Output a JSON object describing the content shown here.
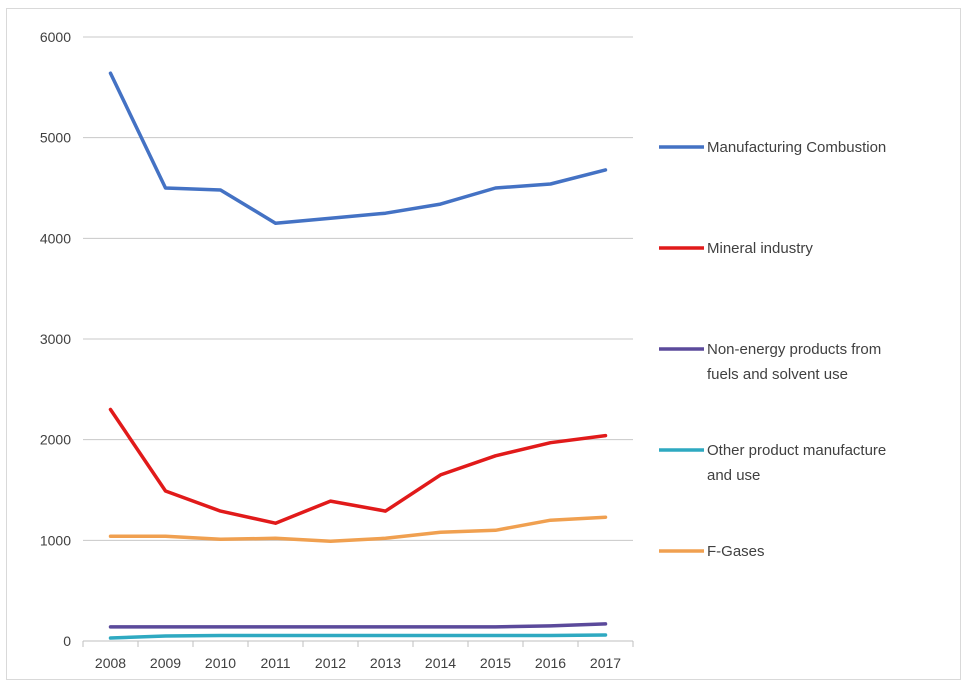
{
  "chart_data": {
    "type": "line",
    "title": "",
    "xlabel": "",
    "ylabel": "",
    "categories": [
      "2008",
      "2009",
      "2010",
      "2011",
      "2012",
      "2013",
      "2014",
      "2015",
      "2016",
      "2017"
    ],
    "ylim": [
      0,
      6000
    ],
    "yticks": [
      0,
      1000,
      2000,
      3000,
      4000,
      5000,
      6000
    ],
    "yticklabels": [
      "0",
      "1000",
      "2000",
      "3000",
      "4000",
      "5000",
      "6000"
    ],
    "grid": "horizontal",
    "legend_position": "right",
    "series": [
      {
        "name": "Manufacturing Combustion",
        "legend_lines": [
          "Manufacturing Combustion"
        ],
        "color": "#4472c4",
        "values": [
          5640,
          4500,
          4480,
          4150,
          4200,
          4250,
          4340,
          4500,
          4540,
          4680
        ]
      },
      {
        "name": "Mineral industry",
        "legend_lines": [
          "Mineral industry"
        ],
        "color": "#e11a1a",
        "values": [
          2300,
          1490,
          1290,
          1170,
          1390,
          1290,
          1650,
          1840,
          1970,
          2040
        ]
      },
      {
        "name": "Non-energy products from fuels and solvent use",
        "legend_lines": [
          "Non-energy products from",
          "fuels and solvent use"
        ],
        "color": "#5b4a9b",
        "values": [
          140,
          140,
          140,
          140,
          140,
          140,
          140,
          140,
          150,
          170
        ]
      },
      {
        "name": "Other product manufacture and use",
        "legend_lines": [
          "Other product manufacture",
          "and use"
        ],
        "color": "#2ea9c1",
        "values": [
          30,
          50,
          55,
          55,
          55,
          55,
          55,
          55,
          55,
          60
        ]
      },
      {
        "name": "F-Gases",
        "legend_lines": [
          "F-Gases"
        ],
        "color": "#f0a050",
        "values": [
          1040,
          1040,
          1010,
          1020,
          990,
          1020,
          1080,
          1100,
          1200,
          1230
        ]
      }
    ]
  }
}
